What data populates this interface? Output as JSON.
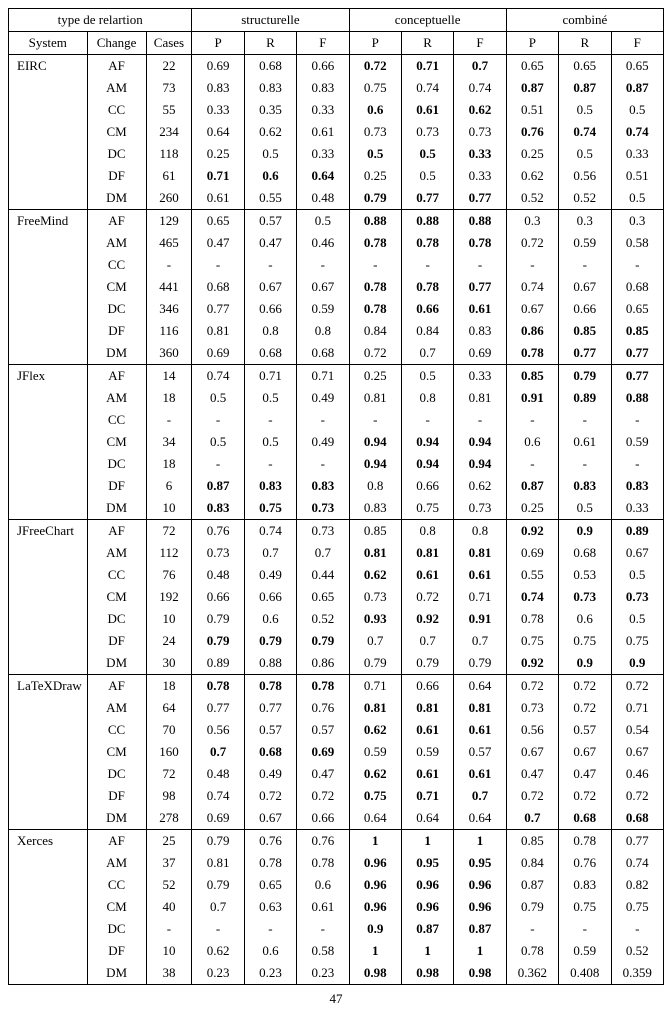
{
  "header": {
    "relation_type": "type de relartion",
    "structural": "structurelle",
    "conceptual": "conceptuelle",
    "combined": "combiné",
    "system": "System",
    "change": "Change",
    "cases": "Cases",
    "p": "P",
    "r": "R",
    "f": "F"
  },
  "page_number": "47",
  "style": {
    "font_family": "Times New Roman",
    "font_size_pt": 10,
    "background": "#ffffff",
    "border_color": "#000000"
  },
  "systems": [
    {
      "name": "EIRC",
      "rows": [
        {
          "change": "AF",
          "cases": "22",
          "s": [
            "0.69",
            "0.68",
            "0.66"
          ],
          "c": [
            "0.72",
            "0.71",
            "0.7"
          ],
          "b": [
            "0.65",
            "0.65",
            "0.65"
          ],
          "bold_group": "c"
        },
        {
          "change": "AM",
          "cases": "73",
          "s": [
            "0.83",
            "0.83",
            "0.83"
          ],
          "c": [
            "0.75",
            "0.74",
            "0.74"
          ],
          "b": [
            "0.87",
            "0.87",
            "0.87"
          ],
          "bold_group": "b"
        },
        {
          "change": "CC",
          "cases": "55",
          "s": [
            "0.33",
            "0.35",
            "0.33"
          ],
          "c": [
            "0.6",
            "0.61",
            "0.62"
          ],
          "b": [
            "0.51",
            "0.5",
            "0.5"
          ],
          "bold_group": "c"
        },
        {
          "change": "CM",
          "cases": "234",
          "s": [
            "0.64",
            "0.62",
            "0.61"
          ],
          "c": [
            "0.73",
            "0.73",
            "0.73"
          ],
          "b": [
            "0.76",
            "0.74",
            "0.74"
          ],
          "bold_group": "b"
        },
        {
          "change": "DC",
          "cases": "118",
          "s": [
            "0.25",
            "0.5",
            "0.33"
          ],
          "c": [
            "0.5",
            "0.5",
            "0.33"
          ],
          "b": [
            "0.25",
            "0.5",
            "0.33"
          ],
          "bold_group": "c"
        },
        {
          "change": "DF",
          "cases": "61",
          "s": [
            "0.71",
            "0.6",
            "0.64"
          ],
          "c": [
            "0.25",
            "0.5",
            "0.33"
          ],
          "b": [
            "0.62",
            "0.56",
            "0.51"
          ],
          "bold_group": "s"
        },
        {
          "change": "DM",
          "cases": "260",
          "s": [
            "0.61",
            "0.55",
            "0.48"
          ],
          "c": [
            "0.79",
            "0.77",
            "0.77"
          ],
          "b": [
            "0.52",
            "0.52",
            "0.5"
          ],
          "bold_group": "c"
        }
      ]
    },
    {
      "name": "FreeMind",
      "rows": [
        {
          "change": "AF",
          "cases": "129",
          "s": [
            "0.65",
            "0.57",
            "0.5"
          ],
          "c": [
            "0.88",
            "0.88",
            "0.88"
          ],
          "b": [
            "0.3",
            "0.3",
            "0.3"
          ],
          "bold_group": "c"
        },
        {
          "change": "AM",
          "cases": "465",
          "s": [
            "0.47",
            "0.47",
            "0.46"
          ],
          "c": [
            "0.78",
            "0.78",
            "0.78"
          ],
          "b": [
            "0.72",
            "0.59",
            "0.58"
          ],
          "bold_group": "c"
        },
        {
          "change": "CC",
          "cases": "-",
          "s": [
            "-",
            "-",
            "-"
          ],
          "c": [
            "-",
            "-",
            "-"
          ],
          "b": [
            "-",
            "-",
            "-"
          ],
          "bold_group": ""
        },
        {
          "change": "CM",
          "cases": "441",
          "s": [
            "0.68",
            "0.67",
            "0.67"
          ],
          "c": [
            "0.78",
            "0.78",
            "0.77"
          ],
          "b": [
            "0.74",
            "0.67",
            "0.68"
          ],
          "bold_group": "c"
        },
        {
          "change": "DC",
          "cases": "346",
          "s": [
            "0.77",
            "0.66",
            "0.59"
          ],
          "c": [
            "0.78",
            "0.66",
            "0.61"
          ],
          "b": [
            "0.67",
            "0.66",
            "0.65"
          ],
          "bold_group": "c"
        },
        {
          "change": "DF",
          "cases": "116",
          "s": [
            "0.81",
            "0.8",
            "0.8"
          ],
          "c": [
            "0.84",
            "0.84",
            "0.83"
          ],
          "b": [
            "0.86",
            "0.85",
            "0.85"
          ],
          "bold_group": "b"
        },
        {
          "change": "DM",
          "cases": "360",
          "s": [
            "0.69",
            "0.68",
            "0.68"
          ],
          "c": [
            "0.72",
            "0.7",
            "0.69"
          ],
          "b": [
            "0.78",
            "0.77",
            "0.77"
          ],
          "bold_group": "b"
        }
      ]
    },
    {
      "name": "JFlex",
      "rows": [
        {
          "change": "AF",
          "cases": "14",
          "s": [
            "0.74",
            "0.71",
            "0.71"
          ],
          "c": [
            "0.25",
            "0.5",
            "0.33"
          ],
          "b": [
            "0.85",
            "0.79",
            "0.77"
          ],
          "bold_group": "b"
        },
        {
          "change": "AM",
          "cases": "18",
          "s": [
            "0.5",
            "0.5",
            "0.49"
          ],
          "c": [
            "0.81",
            "0.8",
            "0.81"
          ],
          "b": [
            "0.91",
            "0.89",
            "0.88"
          ],
          "bold_group": "b"
        },
        {
          "change": "CC",
          "cases": "-",
          "s": [
            "-",
            "-",
            "-"
          ],
          "c": [
            "-",
            "-",
            "-"
          ],
          "b": [
            "-",
            "-",
            "-"
          ],
          "bold_group": ""
        },
        {
          "change": "CM",
          "cases": "34",
          "s": [
            "0.5",
            "0.5",
            "0.49"
          ],
          "c": [
            "0.94",
            "0.94",
            "0.94"
          ],
          "b": [
            "0.6",
            "0.61",
            "0.59"
          ],
          "bold_group": "c"
        },
        {
          "change": "DC",
          "cases": "18",
          "s": [
            "-",
            "-",
            "-"
          ],
          "c": [
            "0.94",
            "0.94",
            "0.94"
          ],
          "b": [
            "-",
            "-",
            "-"
          ],
          "bold_group": "c"
        },
        {
          "change": "DF",
          "cases": "6",
          "s": [
            "0.87",
            "0.83",
            "0.83"
          ],
          "c": [
            "0.8",
            "0.66",
            "0.62"
          ],
          "b": [
            "0.87",
            "0.83",
            "0.83"
          ],
          "bold_group": "sb"
        },
        {
          "change": "DM",
          "cases": "10",
          "s": [
            "0.83",
            "0.75",
            "0.73"
          ],
          "c": [
            "0.83",
            "0.75",
            "0.73"
          ],
          "b": [
            "0.25",
            "0.5",
            "0.33"
          ],
          "bold_group": "s"
        }
      ]
    },
    {
      "name": "JFreeChart",
      "rows": [
        {
          "change": "AF",
          "cases": "72",
          "s": [
            "0.76",
            "0.74",
            "0.73"
          ],
          "c": [
            "0.85",
            "0.8",
            "0.8"
          ],
          "b": [
            "0.92",
            "0.9",
            "0.89"
          ],
          "bold_group": "b"
        },
        {
          "change": "AM",
          "cases": "112",
          "s": [
            "0.73",
            "0.7",
            "0.7"
          ],
          "c": [
            "0.81",
            "0.81",
            "0.81"
          ],
          "b": [
            "0.69",
            "0.68",
            "0.67"
          ],
          "bold_group": "c"
        },
        {
          "change": "CC",
          "cases": "76",
          "s": [
            "0.48",
            "0.49",
            "0.44"
          ],
          "c": [
            "0.62",
            "0.61",
            "0.61"
          ],
          "b": [
            "0.55",
            "0.53",
            "0.5"
          ],
          "bold_group": "c"
        },
        {
          "change": "CM",
          "cases": "192",
          "s": [
            "0.66",
            "0.66",
            "0.65"
          ],
          "c": [
            "0.73",
            "0.72",
            "0.71"
          ],
          "b": [
            "0.74",
            "0.73",
            "0.73"
          ],
          "bold_group": "b"
        },
        {
          "change": "DC",
          "cases": "10",
          "s": [
            "0.79",
            "0.6",
            "0.52"
          ],
          "c": [
            "0.93",
            "0.92",
            "0.91"
          ],
          "b": [
            "0.78",
            "0.6",
            "0.5"
          ],
          "bold_group": "c"
        },
        {
          "change": "DF",
          "cases": "24",
          "s": [
            "0.79",
            "0.79",
            "0.79"
          ],
          "c": [
            "0.7",
            "0.7",
            "0.7"
          ],
          "b": [
            "0.75",
            "0.75",
            "0.75"
          ],
          "bold_group": "s"
        },
        {
          "change": "DM",
          "cases": "30",
          "s": [
            "0.89",
            "0.88",
            "0.86"
          ],
          "c": [
            "0.79",
            "0.79",
            "0.79"
          ],
          "b": [
            "0.92",
            "0.9",
            "0.9"
          ],
          "bold_group": "b"
        }
      ]
    },
    {
      "name": "LaTeXDraw",
      "rows": [
        {
          "change": "AF",
          "cases": "18",
          "s": [
            "0.78",
            "0.78",
            "0.78"
          ],
          "c": [
            "0.71",
            "0.66",
            "0.64"
          ],
          "b": [
            "0.72",
            "0.72",
            "0.72"
          ],
          "bold_group": "s"
        },
        {
          "change": "AM",
          "cases": "64",
          "s": [
            "0.77",
            "0.77",
            "0.76"
          ],
          "c": [
            "0.81",
            "0.81",
            "0.81"
          ],
          "b": [
            "0.73",
            "0.72",
            "0.71"
          ],
          "bold_group": "c"
        },
        {
          "change": "CC",
          "cases": "70",
          "s": [
            "0.56",
            "0.57",
            "0.57"
          ],
          "c": [
            "0.62",
            "0.61",
            "0.61"
          ],
          "b": [
            "0.56",
            "0.57",
            "0.54"
          ],
          "bold_group": "c"
        },
        {
          "change": "CM",
          "cases": "160",
          "s": [
            "0.7",
            "0.68",
            "0.69"
          ],
          "c": [
            "0.59",
            "0.59",
            "0.57"
          ],
          "b": [
            "0.67",
            "0.67",
            "0.67"
          ],
          "bold_group": "s"
        },
        {
          "change": "DC",
          "cases": "72",
          "s": [
            "0.48",
            "0.49",
            "0.47"
          ],
          "c": [
            "0.62",
            "0.61",
            "0.61"
          ],
          "b": [
            "0.47",
            "0.47",
            "0.46"
          ],
          "bold_group": "c"
        },
        {
          "change": "DF",
          "cases": "98",
          "s": [
            "0.74",
            "0.72",
            "0.72"
          ],
          "c": [
            "0.75",
            "0.71",
            "0.7"
          ],
          "b": [
            "0.72",
            "0.72",
            "0.72"
          ],
          "bold_group": "c"
        },
        {
          "change": "DM",
          "cases": "278",
          "s": [
            "0.69",
            "0.67",
            "0.66"
          ],
          "c": [
            "0.64",
            "0.64",
            "0.64"
          ],
          "b": [
            "0.7",
            "0.68",
            "0.68"
          ],
          "bold_group": "b"
        }
      ]
    },
    {
      "name": "Xerces",
      "rows": [
        {
          "change": "AF",
          "cases": "25",
          "s": [
            "0.79",
            "0.76",
            "0.76"
          ],
          "c": [
            "1",
            "1",
            "1"
          ],
          "b": [
            "0.85",
            "0.78",
            "0.77"
          ],
          "bold_group": "c"
        },
        {
          "change": "AM",
          "cases": "37",
          "s": [
            "0.81",
            "0.78",
            "0.78"
          ],
          "c": [
            "0.96",
            "0.95",
            "0.95"
          ],
          "b": [
            "0.84",
            "0.76",
            "0.74"
          ],
          "bold_group": "c"
        },
        {
          "change": "CC",
          "cases": "52",
          "s": [
            "0.79",
            "0.65",
            "0.6"
          ],
          "c": [
            "0.96",
            "0.96",
            "0.96"
          ],
          "b": [
            "0.87",
            "0.83",
            "0.82"
          ],
          "bold_group": "c"
        },
        {
          "change": "CM",
          "cases": "40",
          "s": [
            "0.7",
            "0.63",
            "0.61"
          ],
          "c": [
            "0.96",
            "0.96",
            "0.96"
          ],
          "b": [
            "0.79",
            "0.75",
            "0.75"
          ],
          "bold_group": "c"
        },
        {
          "change": "DC",
          "cases": "-",
          "s": [
            "-",
            "-",
            "-"
          ],
          "c": [
            "0.9",
            "0.87",
            "0.87"
          ],
          "b": [
            "-",
            "-",
            "-"
          ],
          "bold_group": "c"
        },
        {
          "change": "DF",
          "cases": "10",
          "s": [
            "0.62",
            "0.6",
            "0.58"
          ],
          "c": [
            "1",
            "1",
            "1"
          ],
          "b": [
            "0.78",
            "0.59",
            "0.52"
          ],
          "bold_group": "c"
        },
        {
          "change": "DM",
          "cases": "38",
          "s": [
            "0.23",
            "0.23",
            "0.23"
          ],
          "c": [
            "0.98",
            "0.98",
            "0.98"
          ],
          "b": [
            "0.362",
            "0.408",
            "0.359"
          ],
          "bold_group": "c"
        }
      ]
    }
  ]
}
